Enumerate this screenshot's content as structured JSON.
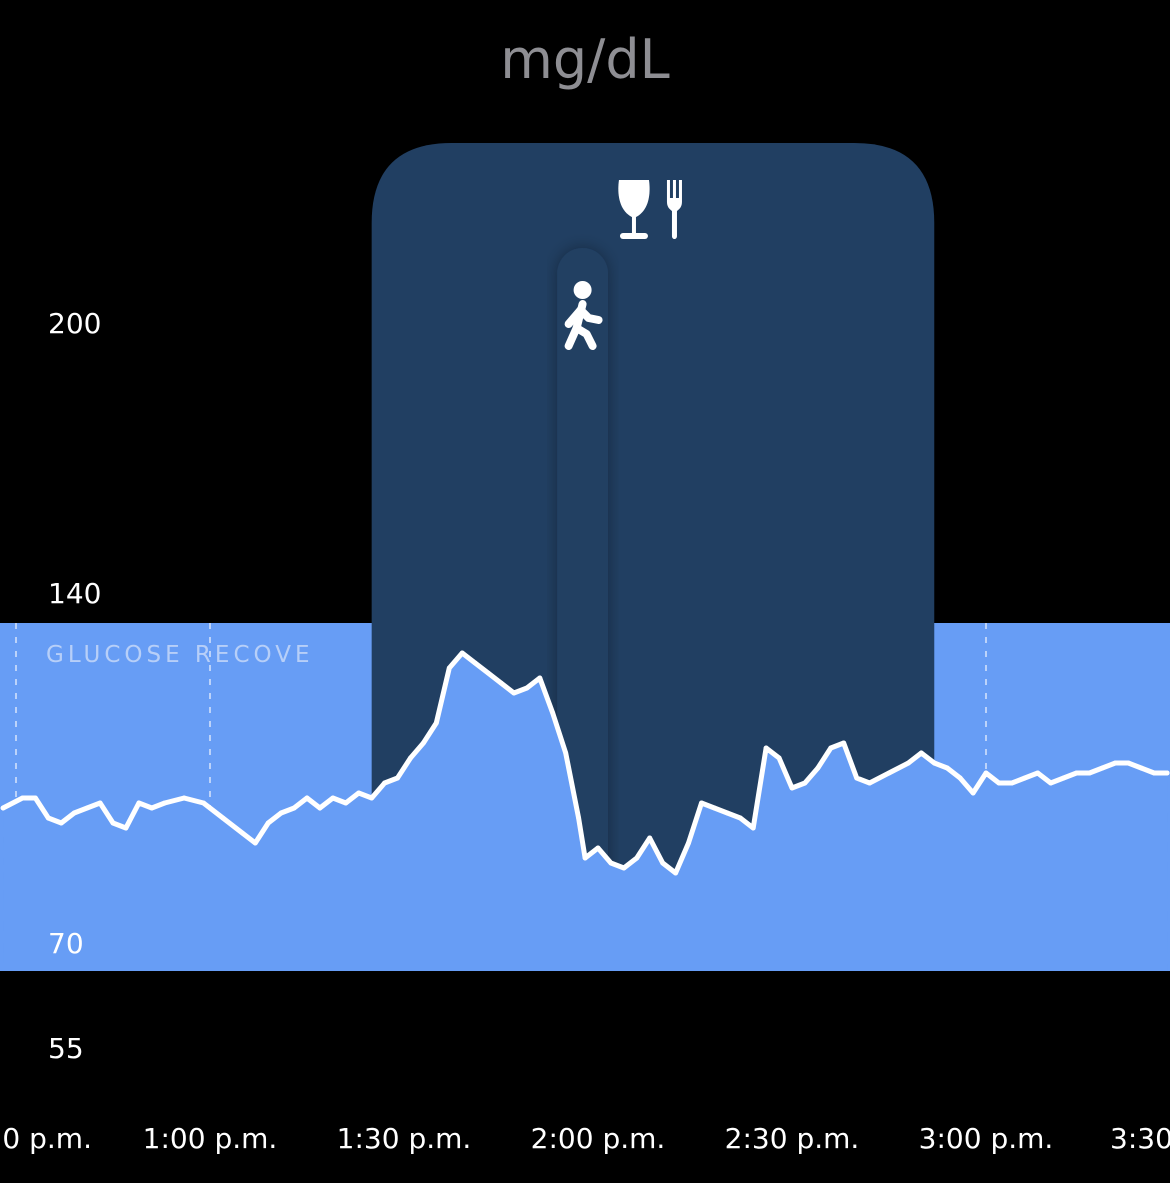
{
  "header": {
    "unit": "mg/dL"
  },
  "colors": {
    "background": "#000000",
    "target_range": "#679df5",
    "event_overlay": "#213f62",
    "exercise_overlay": "#213f62",
    "glucose_line": "#ffffff",
    "band_label": "#b7cff8"
  },
  "icons": {
    "meal": "wine-glass-and-fork-icon",
    "exercise": "walking-person-icon"
  },
  "chart_data": {
    "type": "line",
    "ylabel": "mg/dL",
    "y_ticks": [
      200,
      140,
      70,
      55
    ],
    "x_tick_labels": [
      "0 p.m.",
      "1:00 p.m.",
      "1:30 p.m.",
      "2:00 p.m.",
      "2:30 p.m.",
      "3:00 p.m.",
      "3:30"
    ],
    "target_range": {
      "low": 70,
      "high": 134,
      "label": "GLUCOSE RECOVERY"
    },
    "events": [
      {
        "type": "meal",
        "icon": "wine-glass-and-fork-icon",
        "start": "13:25",
        "end": "14:52"
      },
      {
        "type": "exercise",
        "icon": "walking-person-icon",
        "start": "13:54",
        "end": "14:00"
      }
    ],
    "series": [
      {
        "values": [
          [
            "12:28",
            97
          ],
          [
            "12:31",
            99
          ],
          [
            "12:33",
            99
          ],
          [
            "12:35",
            95
          ],
          [
            "12:37",
            94
          ],
          [
            "12:39",
            96
          ],
          [
            "12:41",
            97
          ],
          [
            "12:43",
            98
          ],
          [
            "12:45",
            94
          ],
          [
            "12:47",
            93
          ],
          [
            "12:49",
            98
          ],
          [
            "12:51",
            97
          ],
          [
            "12:53",
            98
          ],
          [
            "12:56",
            99
          ],
          [
            "12:59",
            98
          ],
          [
            "13:02",
            95
          ],
          [
            "13:05",
            92
          ],
          [
            "13:07",
            90
          ],
          [
            "13:09",
            94
          ],
          [
            "13:11",
            96
          ],
          [
            "13:13",
            97
          ],
          [
            "13:15",
            99
          ],
          [
            "13:17",
            97
          ],
          [
            "13:19",
            99
          ],
          [
            "13:21",
            98
          ],
          [
            "13:23",
            100
          ],
          [
            "13:25",
            99
          ],
          [
            "13:27",
            102
          ],
          [
            "13:29",
            103
          ],
          [
            "13:31",
            107
          ],
          [
            "13:33",
            110
          ],
          [
            "13:35",
            114
          ],
          [
            "13:37",
            125
          ],
          [
            "13:39",
            128
          ],
          [
            "13:41",
            126
          ],
          [
            "13:43",
            124
          ],
          [
            "13:45",
            122
          ],
          [
            "13:47",
            120
          ],
          [
            "13:49",
            121
          ],
          [
            "13:51",
            123
          ],
          [
            "13:53",
            116
          ],
          [
            "13:55",
            108
          ],
          [
            "13:57",
            95
          ],
          [
            "13:58",
            87
          ],
          [
            "14:00",
            89
          ],
          [
            "14:02",
            86
          ],
          [
            "14:04",
            85
          ],
          [
            "14:06",
            87
          ],
          [
            "14:08",
            91
          ],
          [
            "14:10",
            86
          ],
          [
            "14:12",
            84
          ],
          [
            "14:14",
            90
          ],
          [
            "14:16",
            98
          ],
          [
            "14:18",
            97
          ],
          [
            "14:20",
            96
          ],
          [
            "14:22",
            95
          ],
          [
            "14:24",
            93
          ],
          [
            "14:26",
            109
          ],
          [
            "14:28",
            107
          ],
          [
            "14:30",
            101
          ],
          [
            "14:32",
            102
          ],
          [
            "14:34",
            105
          ],
          [
            "14:36",
            109
          ],
          [
            "14:38",
            110
          ],
          [
            "14:40",
            103
          ],
          [
            "14:42",
            102
          ],
          [
            "14:45",
            104
          ],
          [
            "14:48",
            106
          ],
          [
            "14:50",
            108
          ],
          [
            "14:52",
            106
          ],
          [
            "14:54",
            105
          ],
          [
            "14:56",
            103
          ],
          [
            "14:58",
            100
          ],
          [
            "15:00",
            104
          ],
          [
            "15:02",
            102
          ],
          [
            "15:04",
            102
          ],
          [
            "15:06",
            103
          ],
          [
            "15:08",
            104
          ],
          [
            "15:10",
            102
          ],
          [
            "15:12",
            103
          ],
          [
            "15:14",
            104
          ],
          [
            "15:16",
            104
          ],
          [
            "15:18",
            105
          ],
          [
            "15:20",
            106
          ],
          [
            "15:22",
            106
          ],
          [
            "15:24",
            105
          ],
          [
            "15:26",
            104
          ],
          [
            "15:28",
            104
          ]
        ]
      }
    ],
    "grid": true
  }
}
